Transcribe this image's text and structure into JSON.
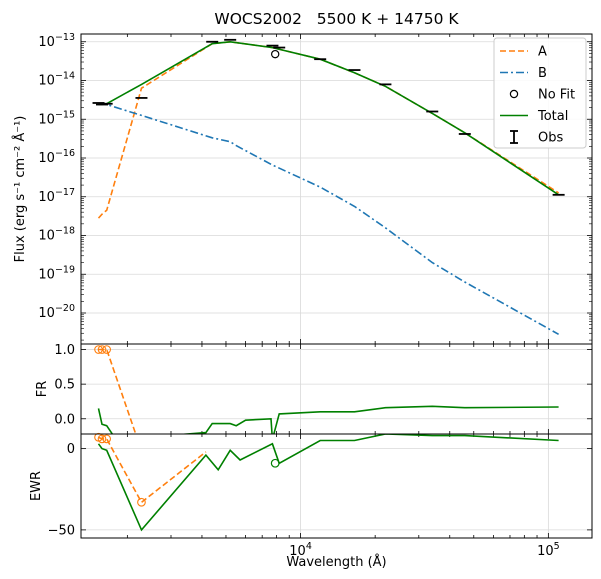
{
  "chart_data": {
    "type": "line",
    "title": "WOCS2002   5500 K + 14750 K",
    "xlabel": "Wavelength (Å)",
    "x_scale": "log",
    "xlim": [
      1300,
      150000
    ],
    "x_ticks": [
      {
        "value": 10000,
        "base": "10",
        "exp": "4"
      },
      {
        "value": 100000,
        "base": "10",
        "exp": "5"
      }
    ],
    "legend": {
      "placement": "top-right",
      "entries": [
        {
          "label": "A",
          "color": "#ff7f0e",
          "style": "dashed"
        },
        {
          "label": "B",
          "color": "#1f77b4",
          "style": "dashdot"
        },
        {
          "label": "No Fit",
          "color": "#000000",
          "style": "open-circle"
        },
        {
          "label": "Total",
          "color": "#008000",
          "style": "solid"
        },
        {
          "label": "Obs",
          "color": "#000000",
          "style": "errorbar"
        }
      ]
    },
    "panels": {
      "flux": {
        "ylabel": "Flux (erg s⁻¹ cm⁻² Å⁻¹)",
        "y_scale": "log",
        "ylim_log10": [
          -20.8,
          -12.8
        ],
        "y_ticks": [
          {
            "value": -20,
            "base": "10",
            "exp": "−20"
          },
          {
            "value": -19,
            "base": "10",
            "exp": "−19"
          },
          {
            "value": -18,
            "base": "10",
            "exp": "−18"
          },
          {
            "value": -17,
            "base": "10",
            "exp": "−17"
          },
          {
            "value": -16,
            "base": "10",
            "exp": "−16"
          },
          {
            "value": -15,
            "base": "10",
            "exp": "−15"
          },
          {
            "value": -14,
            "base": "10",
            "exp": "−14"
          },
          {
            "value": -13,
            "base": "10",
            "exp": "−13"
          }
        ],
        "series": [
          {
            "name": "A",
            "color": "#ff7f0e",
            "x": [
              1530,
              1580,
              1650,
              2280,
              4400,
              5200,
              7700,
              12000,
              16500,
              22000,
              34000,
              46000,
              110000
            ],
            "log10_y": [
              -17.55,
              -17.45,
              -17.35,
              -14.2,
              -13.05,
              -13.0,
              -13.15,
              -13.45,
              -13.8,
              -14.15,
              -14.85,
              -15.35,
              -16.9
            ]
          },
          {
            "name": "B",
            "color": "#1f77b4",
            "x": [
              1530,
              1580,
              1650,
              2280,
              4400,
              5200,
              5500,
              7700,
              12000,
              16500,
              22000,
              34000,
              46000,
              110000
            ],
            "log10_y": [
              -14.6,
              -14.6,
              -14.62,
              -14.9,
              -15.48,
              -15.58,
              -15.68,
              -16.18,
              -16.75,
              -17.25,
              -17.8,
              -18.7,
              -19.2,
              -20.55
            ]
          },
          {
            "name": "Total",
            "color": "#008000",
            "x": [
              1530,
              1580,
              1650,
              2280,
              4400,
              5200,
              7700,
              12000,
              16500,
              22000,
              34000,
              46000,
              110000
            ],
            "log10_y": [
              -14.62,
              -14.62,
              -14.6,
              -14.1,
              -13.05,
              -13.0,
              -13.15,
              -13.45,
              -13.8,
              -14.15,
              -14.85,
              -15.35,
              -16.95
            ]
          }
        ],
        "obs": {
          "x": [
            1530,
            1580,
            1650,
            2280,
            4400,
            5200,
            7700,
            8200,
            12000,
            16500,
            22000,
            34000,
            46000,
            110000
          ],
          "log10_y": [
            -14.58,
            -14.62,
            -14.6,
            -14.45,
            -13.0,
            -12.95,
            -13.1,
            -13.15,
            -13.45,
            -13.73,
            -14.1,
            -14.8,
            -15.38,
            -16.95
          ]
        },
        "no_fit": {
          "x": [
            7900
          ],
          "log10_y": [
            -13.32
          ]
        }
      },
      "fr": {
        "ylabel": "FR",
        "ylim": [
          -0.22,
          1.08
        ],
        "y_ticks": [
          {
            "value": -0.0,
            "label": "0.0"
          },
          {
            "value": 0.5,
            "label": "0.5"
          },
          {
            "value": 1.0,
            "label": "1.0"
          }
        ],
        "series": [
          {
            "name": "A",
            "color": "#ff7f0e",
            "x": [
              1530,
              1580,
              1650,
              2200
            ],
            "y": [
              1.0,
              1.0,
              1.0,
              -0.3
            ],
            "markers_x": [
              1530,
              1580,
              1650
            ],
            "markers_y": [
              1.0,
              1.0,
              1.0
            ]
          },
          {
            "name": "A-right",
            "color": "#ff7f0e",
            "x": [
              3900,
              4150
            ],
            "y": [
              -0.3,
              -0.2
            ]
          },
          {
            "name": "Total",
            "color": "#008000",
            "x": [
              1530,
              1580,
              1650,
              1800,
              4150,
              4400,
              5200,
              5500,
              6000,
              7600,
              7700,
              8200,
              12000,
              16500,
              22000,
              34000,
              46000,
              110000
            ],
            "y": [
              0.15,
              -0.08,
              -0.1,
              -0.3,
              -0.2,
              -0.07,
              -0.07,
              -0.1,
              -0.02,
              0.0,
              -0.3,
              0.07,
              0.1,
              0.1,
              0.16,
              0.18,
              0.16,
              0.17
            ]
          }
        ]
      },
      "ewr": {
        "ylabel": "EWR",
        "ylim": [
          -55,
          9
        ],
        "y_ticks": [
          {
            "value": -50,
            "label": "−50"
          },
          {
            "value": 0,
            "label": "0"
          }
        ],
        "series": [
          {
            "name": "A",
            "color": "#ff7f0e",
            "x": [
              1530,
              1580,
              1650,
              2280,
              4150
            ],
            "y": [
              7,
              6,
              6,
              -33,
              -2
            ],
            "markers_x": [
              1530,
              1580,
              1650,
              2280
            ],
            "markers_y": [
              7,
              6,
              6,
              -33
            ]
          },
          {
            "name": "Total",
            "color": "#008000",
            "x": [
              1530,
              1580,
              1650,
              2280,
              4150,
              4650,
              5200,
              5700,
              7700,
              8200,
              12000,
              16500,
              22000,
              34000,
              46000,
              110000
            ],
            "y": [
              3,
              0,
              -1,
              -50,
              -4,
              -13,
              -1,
              -7,
              3,
              -9,
              5,
              5,
              9,
              8,
              8,
              5
            ]
          }
        ],
        "no_fit": {
          "x": [
            7900
          ],
          "y": [
            -9
          ]
        }
      }
    }
  }
}
